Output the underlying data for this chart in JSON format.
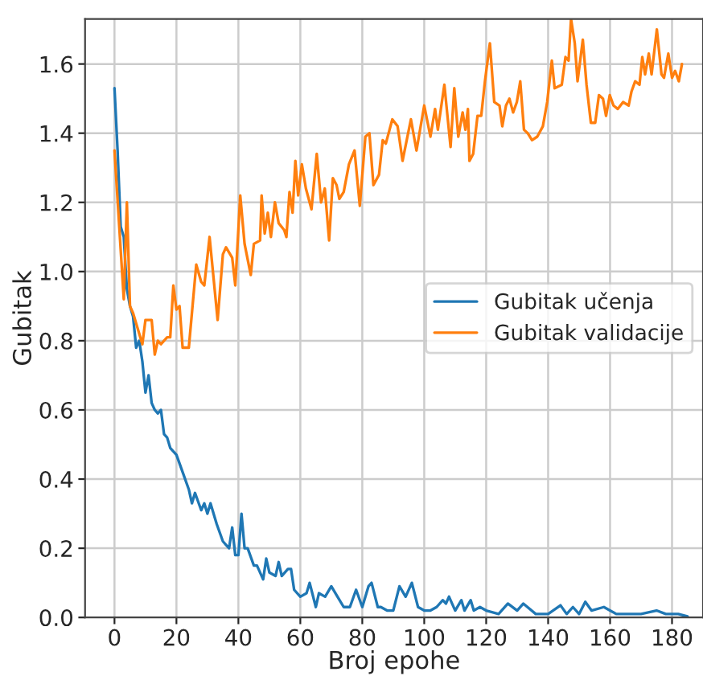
{
  "chart_data": {
    "type": "line",
    "xlabel": "Broj epohe",
    "ylabel": "Gubitak",
    "xlim": [
      -9.5,
      190
    ],
    "xticks": [
      0,
      20,
      40,
      60,
      80,
      100,
      120,
      140,
      160,
      180
    ],
    "ylim": [
      0,
      1.73
    ],
    "yticks": [
      {
        "value": 0,
        "label": "0.0"
      },
      0.2,
      0.4,
      0.6,
      0.8,
      {
        "value": 1,
        "label": "1.0"
      },
      1.2,
      1.4,
      1.6
    ],
    "grid": true,
    "legend": "center right",
    "series": [
      {
        "name": "Gubitak učenja",
        "color": "#1f77b4",
        "x": [
          0,
          1,
          2,
          3,
          4,
          5,
          6,
          7,
          8,
          9,
          10,
          11,
          12,
          13,
          14,
          15,
          16,
          17,
          18,
          19,
          20,
          22,
          24,
          25,
          26,
          28,
          29,
          30,
          31,
          33,
          35,
          36,
          37,
          38,
          39,
          40,
          41,
          42,
          43,
          45,
          46,
          48,
          49,
          50,
          52,
          53,
          54,
          56,
          57,
          58,
          60,
          62,
          63,
          65,
          66,
          68,
          70,
          72,
          74,
          76,
          78,
          80,
          82,
          83,
          85,
          86,
          88,
          90,
          92,
          94,
          96,
          98,
          100,
          102,
          104,
          106,
          107,
          108,
          110,
          112,
          113,
          115,
          116,
          118,
          120,
          124,
          127,
          130,
          132,
          136,
          140,
          144,
          146,
          148,
          150,
          152,
          154,
          158,
          162,
          166,
          170,
          175,
          178,
          182,
          185
        ],
        "values": [
          1.53,
          1.35,
          1.13,
          1.1,
          0.95,
          0.9,
          0.87,
          0.78,
          0.8,
          0.74,
          0.65,
          0.7,
          0.62,
          0.6,
          0.59,
          0.6,
          0.53,
          0.52,
          0.49,
          0.48,
          0.47,
          0.42,
          0.37,
          0.33,
          0.36,
          0.31,
          0.33,
          0.3,
          0.33,
          0.27,
          0.22,
          0.21,
          0.2,
          0.26,
          0.18,
          0.18,
          0.3,
          0.2,
          0.2,
          0.15,
          0.15,
          0.11,
          0.17,
          0.13,
          0.12,
          0.16,
          0.12,
          0.14,
          0.14,
          0.08,
          0.06,
          0.07,
          0.1,
          0.03,
          0.07,
          0.06,
          0.09,
          0.06,
          0.03,
          0.03,
          0.08,
          0.03,
          0.09,
          0.1,
          0.03,
          0.03,
          0.02,
          0.02,
          0.09,
          0.06,
          0.1,
          0.03,
          0.02,
          0.02,
          0.03,
          0.05,
          0.04,
          0.06,
          0.02,
          0.05,
          0.02,
          0.05,
          0.02,
          0.03,
          0.02,
          0.01,
          0.04,
          0.02,
          0.04,
          0.01,
          0.01,
          0.035,
          0.01,
          0.03,
          0.01,
          0.045,
          0.02,
          0.03,
          0.01,
          0.01,
          0.01,
          0.02,
          0.01,
          0.01,
          0.003
        ]
      },
      {
        "name": "Gubitak validacije",
        "color": "#ff7f0e",
        "x": [
          0,
          3,
          4,
          5,
          6,
          9,
          10,
          12,
          13,
          14,
          15,
          17,
          18,
          19,
          20,
          21,
          22,
          24,
          26.4,
          28,
          29,
          30.7,
          33.3,
          35,
          36,
          38,
          39,
          40.6,
          42,
          44,
          45,
          47,
          47.5,
          48.5,
          49.5,
          50.5,
          51.8,
          53,
          54.8,
          55.5,
          56.5,
          57.5,
          58.4,
          59.3,
          60.5,
          61.8,
          63.6,
          65.3,
          66.7,
          67.9,
          69.3,
          70.5,
          71.7,
          72.6,
          74,
          75.7,
          77.5,
          79.2,
          81,
          82.3,
          83.6,
          85.4,
          86.6,
          87.6,
          89.7,
          91.4,
          93,
          95.7,
          97.5,
          100,
          102,
          103.5,
          104.4,
          106.5,
          108.5,
          109.7,
          111,
          112.4,
          113.3,
          114.1,
          114.6,
          115.8,
          117.2,
          118.4,
          119.6,
          121.2,
          122.6,
          124.3,
          125.2,
          126.4,
          127.5,
          128.7,
          129.9,
          131,
          132.2,
          133.4,
          134.8,
          136.5,
          138.3,
          139.7,
          141.2,
          142.1,
          144.4,
          145.6,
          146.6,
          147.4,
          148.6,
          149.5,
          151.2,
          152.4,
          153.8,
          155.2,
          156.4,
          157.7,
          158.7,
          159.9,
          161.1,
          162.5,
          164.2,
          166,
          166.9,
          168.1,
          169.5,
          170.4,
          171.3,
          172.5,
          173.4,
          175.1,
          176.6,
          177.4,
          178.8,
          180,
          181,
          182.2,
          183.2
        ],
        "values": [
          1.35,
          0.92,
          1.2,
          0.9,
          0.88,
          0.79,
          0.86,
          0.86,
          0.76,
          0.8,
          0.79,
          0.81,
          0.81,
          0.96,
          0.89,
          0.9,
          0.78,
          0.78,
          1.02,
          0.97,
          0.96,
          1.1,
          0.86,
          1.05,
          1.07,
          1.04,
          0.96,
          1.22,
          1.08,
          0.99,
          1.08,
          1.09,
          1.22,
          1.11,
          1.17,
          1.1,
          1.2,
          1.14,
          1.12,
          1.1,
          1.23,
          1.17,
          1.32,
          1.22,
          1.31,
          1.24,
          1.18,
          1.34,
          1.2,
          1.24,
          1.09,
          1.27,
          1.25,
          1.21,
          1.23,
          1.31,
          1.35,
          1.19,
          1.39,
          1.4,
          1.25,
          1.28,
          1.38,
          1.37,
          1.44,
          1.42,
          1.32,
          1.44,
          1.35,
          1.48,
          1.39,
          1.47,
          1.41,
          1.54,
          1.36,
          1.53,
          1.39,
          1.46,
          1.41,
          1.47,
          1.32,
          1.34,
          1.45,
          1.45,
          1.55,
          1.66,
          1.49,
          1.48,
          1.42,
          1.48,
          1.5,
          1.46,
          1.49,
          1.55,
          1.41,
          1.4,
          1.38,
          1.39,
          1.42,
          1.49,
          1.61,
          1.53,
          1.54,
          1.62,
          1.61,
          1.73,
          1.66,
          1.55,
          1.67,
          1.54,
          1.43,
          1.43,
          1.51,
          1.5,
          1.45,
          1.51,
          1.48,
          1.47,
          1.49,
          1.48,
          1.52,
          1.55,
          1.54,
          1.62,
          1.57,
          1.63,
          1.57,
          1.7,
          1.57,
          1.56,
          1.63,
          1.56,
          1.58,
          1.55,
          1.6
        ]
      }
    ]
  }
}
